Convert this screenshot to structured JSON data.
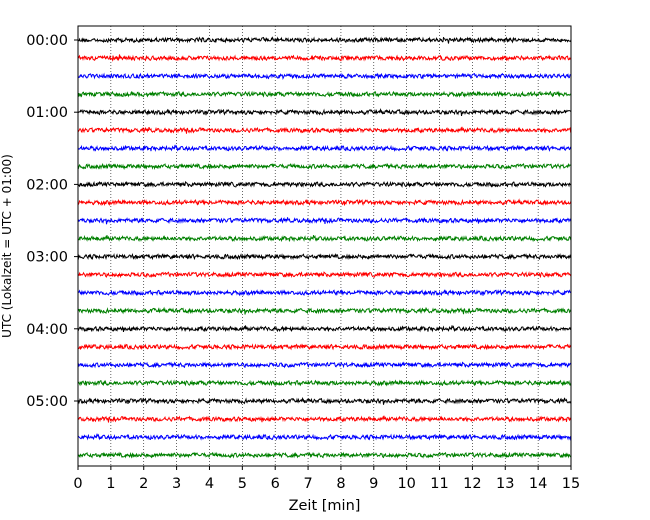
{
  "chart_data": {
    "type": "line",
    "xlabel": "Zeit  [min]",
    "ylabel": "UTC (Lokalzeit = UTC + 01:00)",
    "xlim": [
      0,
      15
    ],
    "x_ticks": [
      "0",
      "1",
      "2",
      "3",
      "4",
      "5",
      "6",
      "7",
      "8",
      "9",
      "10",
      "11",
      "12",
      "13",
      "14",
      "15"
    ],
    "y_ticks": [
      "00:00",
      "01:00",
      "02:00",
      "03:00",
      "04:00",
      "05:00"
    ],
    "grid": "vertical dotted",
    "series_colors": [
      "#000000",
      "#ff0000",
      "#0000ff",
      "#008000"
    ],
    "traces_per_hour": 4,
    "minutes_per_trace": 15,
    "trace_start_times": [
      "00:00",
      "00:15",
      "00:30",
      "00:45",
      "01:00",
      "01:15",
      "01:30",
      "01:45",
      "02:00",
      "02:15",
      "02:30",
      "02:45",
      "03:00",
      "03:15",
      "03:30",
      "03:45",
      "04:00",
      "04:15",
      "04:30",
      "04:45",
      "05:00",
      "05:15",
      "05:30",
      "05:45"
    ]
  }
}
